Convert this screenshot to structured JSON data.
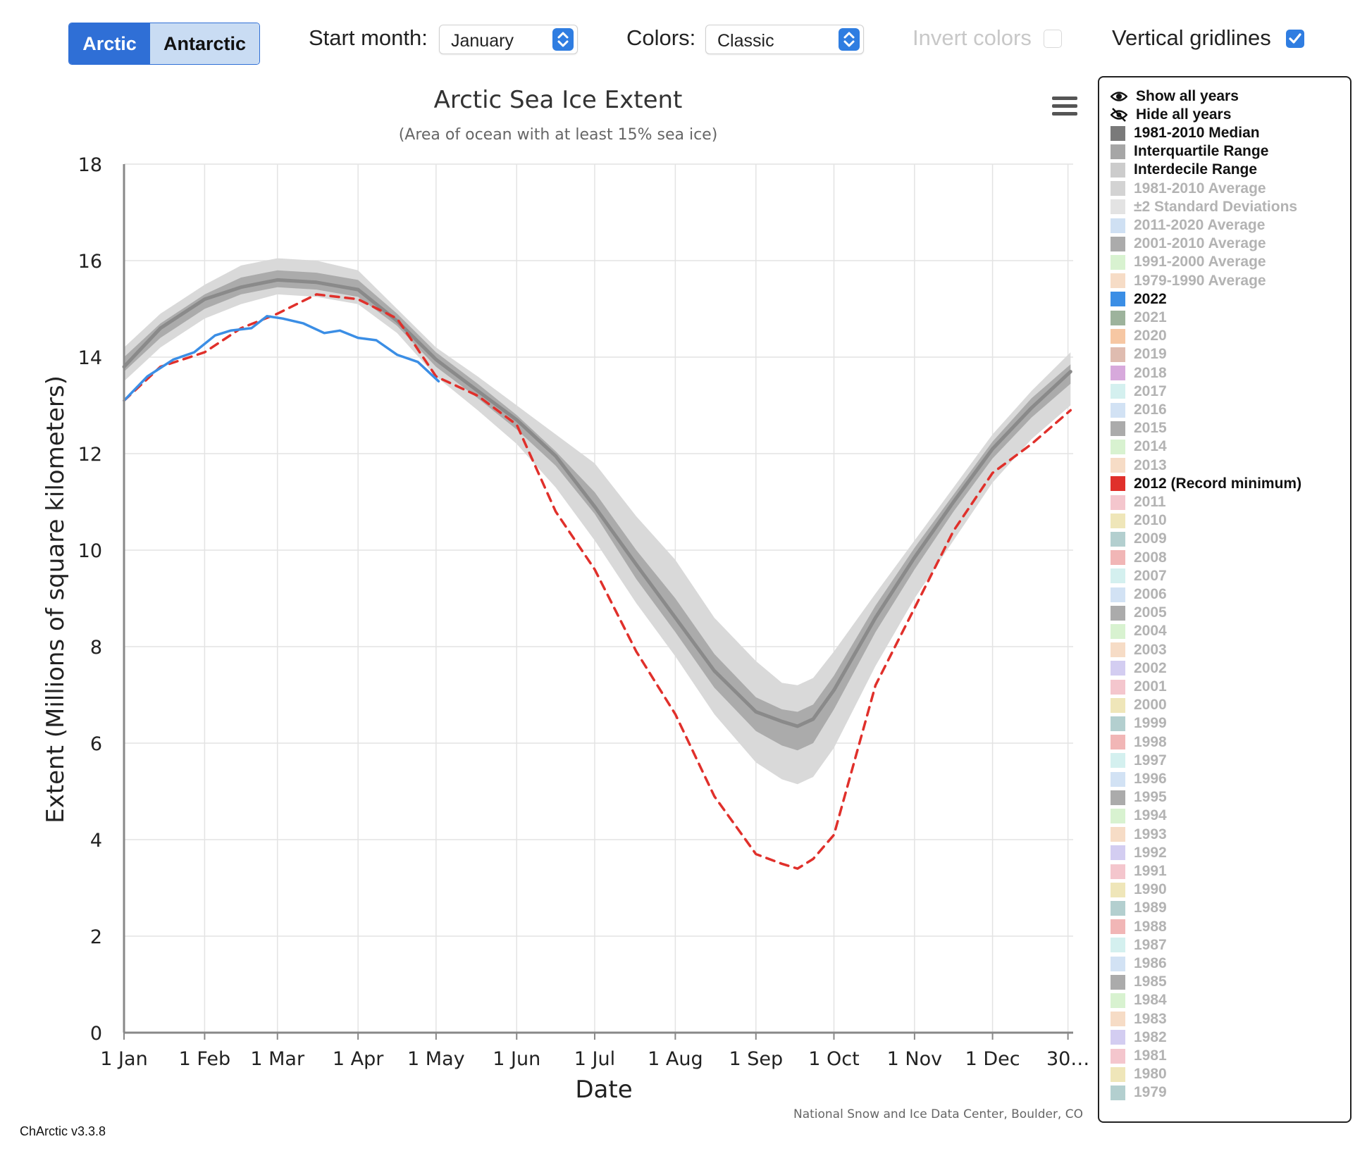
{
  "controls": {
    "hemisphere_tabs": [
      "Arctic",
      "Antarctic"
    ],
    "start_month_label": "Start month:",
    "start_month_value": "January",
    "colors_label": "Colors:",
    "colors_value": "Classic",
    "invert_colors_label": "Invert colors",
    "invert_colors_checked": false,
    "vertical_gridlines_label": "Vertical gridlines",
    "vertical_gridlines_checked": true
  },
  "chart_data": {
    "type": "line",
    "title": "Arctic Sea Ice Extent",
    "subtitle": "(Area of ocean with at least 15% sea ice)",
    "xlabel": "Date",
    "ylabel": "Extent (Millions of square kilometers)",
    "credit": "National Snow and Ice Data Center, Boulder, CO",
    "ylim": [
      0,
      18
    ],
    "yticks": [
      0,
      2,
      4,
      6,
      8,
      10,
      12,
      14,
      16,
      18
    ],
    "xlim": [
      1,
      366
    ],
    "xticks": [
      {
        "day": 1,
        "label": "1 Jan"
      },
      {
        "day": 32,
        "label": "1 Feb"
      },
      {
        "day": 60,
        "label": "1 Mar"
      },
      {
        "day": 91,
        "label": "1 Apr"
      },
      {
        "day": 121,
        "label": "1 May"
      },
      {
        "day": 152,
        "label": "1 Jun"
      },
      {
        "day": 182,
        "label": "1 Jul"
      },
      {
        "day": 213,
        "label": "1 Aug"
      },
      {
        "day": 244,
        "label": "1 Sep"
      },
      {
        "day": 274,
        "label": "1 Oct"
      },
      {
        "day": 305,
        "label": "1 Nov"
      },
      {
        "day": 335,
        "label": "1 Dec"
      },
      {
        "day": 364,
        "label": "30…"
      }
    ],
    "grid": true,
    "legend_position": "right",
    "x_units": "day of year",
    "x": [
      1,
      15,
      32,
      46,
      60,
      75,
      91,
      106,
      121,
      137,
      152,
      167,
      182,
      198,
      213,
      228,
      244,
      254,
      260,
      266,
      274,
      290,
      305,
      320,
      335,
      350,
      365
    ],
    "bands": [
      {
        "name": "Interdecile Range",
        "color": "#d9d9d9",
        "lower": [
          13.5,
          14.2,
          14.8,
          15.1,
          15.3,
          15.25,
          15.1,
          14.5,
          13.6,
          12.9,
          12.2,
          11.3,
          10.2,
          8.9,
          7.8,
          6.6,
          5.6,
          5.25,
          5.15,
          5.3,
          5.9,
          7.6,
          9.0,
          10.2,
          11.4,
          12.3,
          13.0
        ],
        "upper": [
          14.2,
          14.9,
          15.5,
          15.9,
          16.05,
          16.0,
          15.8,
          15.0,
          14.2,
          13.6,
          13.0,
          12.4,
          11.8,
          10.7,
          9.8,
          8.6,
          7.7,
          7.25,
          7.2,
          7.35,
          7.9,
          9.1,
          10.2,
          11.3,
          12.4,
          13.3,
          14.1
        ]
      },
      {
        "name": "Interquartile Range",
        "color": "#ababab",
        "lower": [
          13.7,
          14.4,
          15.0,
          15.3,
          15.45,
          15.4,
          15.25,
          14.65,
          13.8,
          13.15,
          12.5,
          11.75,
          10.75,
          9.4,
          8.3,
          7.15,
          6.25,
          5.95,
          5.85,
          6.0,
          6.7,
          8.3,
          9.6,
          10.8,
          11.9,
          12.75,
          13.45
        ],
        "upper": [
          14.0,
          14.7,
          15.3,
          15.65,
          15.8,
          15.75,
          15.6,
          14.9,
          14.1,
          13.45,
          12.8,
          12.05,
          11.2,
          10.0,
          9.0,
          7.85,
          6.95,
          6.7,
          6.65,
          6.8,
          7.4,
          8.85,
          10.05,
          11.15,
          12.25,
          13.15,
          13.85
        ]
      }
    ],
    "series": [
      {
        "name": "1981-2010 Median",
        "color": "#8a8a8a",
        "style": "solid",
        "values": [
          13.8,
          14.6,
          15.2,
          15.45,
          15.6,
          15.55,
          15.4,
          14.75,
          13.95,
          13.3,
          12.7,
          11.95,
          10.9,
          9.7,
          8.6,
          7.5,
          6.65,
          6.45,
          6.35,
          6.5,
          7.1,
          8.6,
          9.85,
          11.0,
          12.1,
          12.95,
          13.7
        ]
      },
      {
        "name": "2012 (Record minimum)",
        "color": "#e0302b",
        "style": "dashed",
        "values": [
          13.1,
          13.8,
          14.1,
          14.6,
          14.9,
          15.3,
          15.2,
          14.8,
          13.6,
          13.2,
          12.6,
          10.8,
          9.6,
          7.9,
          6.6,
          4.9,
          3.7,
          3.5,
          3.4,
          3.6,
          4.1,
          7.2,
          8.8,
          10.4,
          11.6,
          12.2,
          12.9
        ]
      },
      {
        "name": "2022",
        "color": "#3b8ee5",
        "style": "solid",
        "x": [
          1,
          10,
          20,
          28,
          36,
          42,
          50,
          56,
          62,
          70,
          78,
          84,
          91,
          98,
          106,
          114,
          122
        ],
        "values": [
          13.1,
          13.6,
          13.95,
          14.1,
          14.45,
          14.55,
          14.6,
          14.85,
          14.8,
          14.7,
          14.5,
          14.55,
          14.4,
          14.35,
          14.05,
          13.9,
          13.5
        ]
      }
    ]
  },
  "legend": {
    "show_all": "Show all years",
    "hide_all": "Hide all years",
    "items": [
      {
        "label": "1981-2010 Median",
        "color": "#7a7a7a",
        "active": true
      },
      {
        "label": "Interquartile Range",
        "color": "#a6a6a6",
        "active": true
      },
      {
        "label": "Interdecile Range",
        "color": "#cccccc",
        "active": true
      },
      {
        "label": "1981-2010 Average",
        "color": "#d3d3d3",
        "active": false
      },
      {
        "label": "±2 Standard Deviations",
        "color": "#e3e3e3",
        "active": false
      },
      {
        "label": "2011-2020 Average",
        "color": "#cfe0f3",
        "active": false
      },
      {
        "label": "2001-2010 Average",
        "color": "#ababab",
        "active": false
      },
      {
        "label": "1991-2000 Average",
        "color": "#d8f2d0",
        "active": false
      },
      {
        "label": "1979-1990 Average",
        "color": "#f6dcc6",
        "active": false
      },
      {
        "label": "2022",
        "color": "#3b8ee5",
        "active": true
      },
      {
        "label": "2021",
        "color": "#9db39c",
        "active": false
      },
      {
        "label": "2020",
        "color": "#f6c7a3",
        "active": false
      },
      {
        "label": "2019",
        "color": "#dfbcb0",
        "active": false
      },
      {
        "label": "2018",
        "color": "#d7a9dc",
        "active": false
      },
      {
        "label": "2017",
        "color": "#d4f0ef",
        "active": false
      },
      {
        "label": "2016",
        "color": "#d2e2f4",
        "active": false
      },
      {
        "label": "2015",
        "color": "#ababab",
        "active": false
      },
      {
        "label": "2014",
        "color": "#d8f2d0",
        "active": false
      },
      {
        "label": "2013",
        "color": "#f6dcc6",
        "active": false
      },
      {
        "label": "2012 (Record minimum)",
        "color": "#e0302b",
        "active": true
      },
      {
        "label": "2011",
        "color": "#f4c6cd",
        "active": false
      },
      {
        "label": "2010",
        "color": "#efe6b9",
        "active": false
      },
      {
        "label": "2009",
        "color": "#b3cfcf",
        "active": false
      },
      {
        "label": "2008",
        "color": "#f1b6b6",
        "active": false
      },
      {
        "label": "2007",
        "color": "#d4f0ef",
        "active": false
      },
      {
        "label": "2006",
        "color": "#d2e2f4",
        "active": false
      },
      {
        "label": "2005",
        "color": "#ababab",
        "active": false
      },
      {
        "label": "2004",
        "color": "#d8f2d0",
        "active": false
      },
      {
        "label": "2003",
        "color": "#f6dcc6",
        "active": false
      },
      {
        "label": "2002",
        "color": "#d3cdf1",
        "active": false
      },
      {
        "label": "2001",
        "color": "#f4c6cd",
        "active": false
      },
      {
        "label": "2000",
        "color": "#efe6b9",
        "active": false
      },
      {
        "label": "1999",
        "color": "#b3cfcf",
        "active": false
      },
      {
        "label": "1998",
        "color": "#f1b6b6",
        "active": false
      },
      {
        "label": "1997",
        "color": "#d4f0ef",
        "active": false
      },
      {
        "label": "1996",
        "color": "#d2e2f4",
        "active": false
      },
      {
        "label": "1995",
        "color": "#ababab",
        "active": false
      },
      {
        "label": "1994",
        "color": "#d8f2d0",
        "active": false
      },
      {
        "label": "1993",
        "color": "#f6dcc6",
        "active": false
      },
      {
        "label": "1992",
        "color": "#d3cdf1",
        "active": false
      },
      {
        "label": "1991",
        "color": "#f4c6cd",
        "active": false
      },
      {
        "label": "1990",
        "color": "#efe6b9",
        "active": false
      },
      {
        "label": "1989",
        "color": "#b3cfcf",
        "active": false
      },
      {
        "label": "1988",
        "color": "#f1b6b6",
        "active": false
      },
      {
        "label": "1987",
        "color": "#d4f0ef",
        "active": false
      },
      {
        "label": "1986",
        "color": "#d2e2f4",
        "active": false
      },
      {
        "label": "1985",
        "color": "#ababab",
        "active": false
      },
      {
        "label": "1984",
        "color": "#d8f2d0",
        "active": false
      },
      {
        "label": "1983",
        "color": "#f6dcc6",
        "active": false
      },
      {
        "label": "1982",
        "color": "#d3cdf1",
        "active": false
      },
      {
        "label": "1981",
        "color": "#f4c6cd",
        "active": false
      },
      {
        "label": "1980",
        "color": "#efe6b9",
        "active": false
      },
      {
        "label": "1979",
        "color": "#b3cfcf",
        "active": false
      }
    ]
  },
  "footer": {
    "version": "ChArctic v3.3.8"
  }
}
